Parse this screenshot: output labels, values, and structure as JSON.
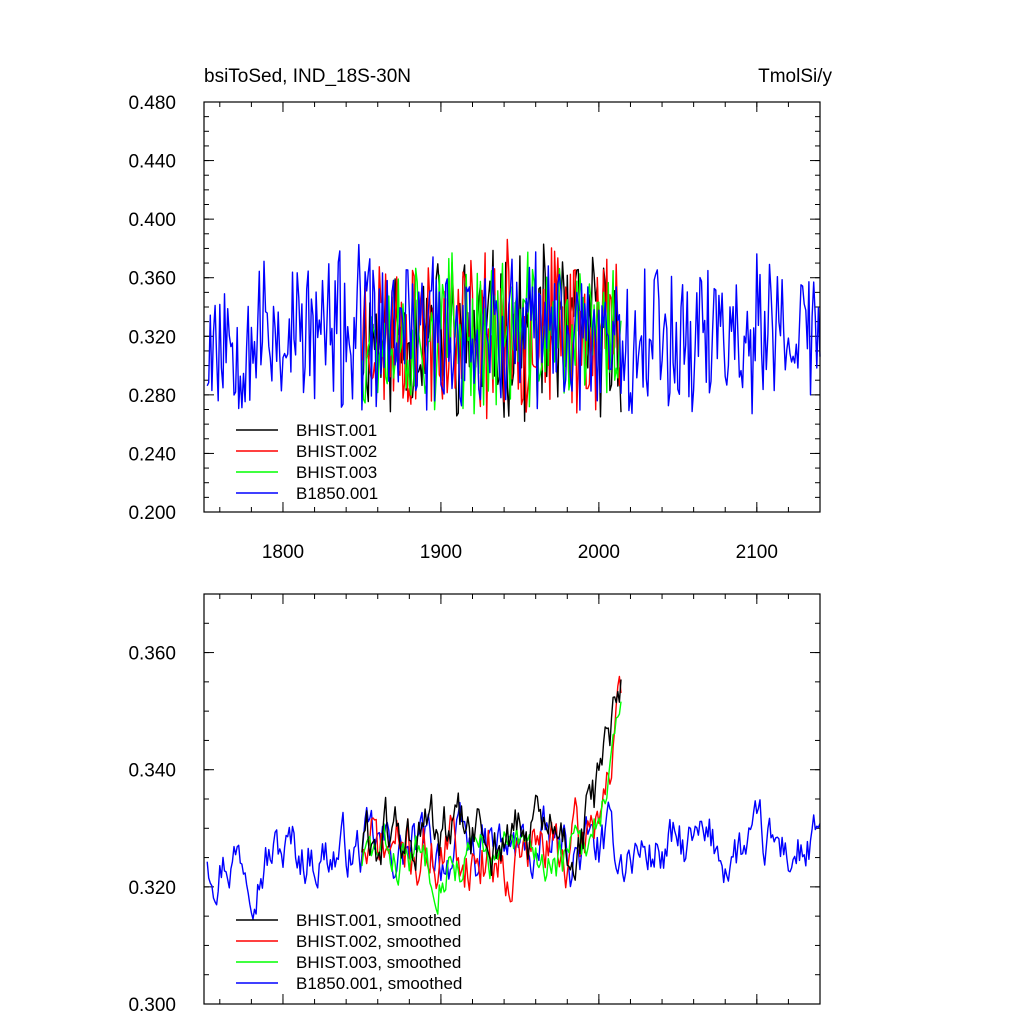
{
  "chart_data": [
    {
      "type": "line",
      "title_left": "bsiToSed, IND_18S-30N",
      "title_right": "TmolSi/y",
      "xlabel": "",
      "ylabel": "",
      "xlim": [
        1750,
        2140
      ],
      "ylim": [
        0.2,
        0.48
      ],
      "yticks": [
        "0.200",
        "0.240",
        "0.280",
        "0.320",
        "0.360",
        "0.400",
        "0.440",
        "0.480"
      ],
      "xticks": [
        "1800",
        "1900",
        "2000",
        "2100"
      ],
      "legend_position": "lower-left",
      "series": [
        {
          "name": "BHIST.001",
          "color": "#000000",
          "x_start": 1850,
          "x_end": 2014,
          "mean": 0.322,
          "amp": 0.048,
          "seed": 11
        },
        {
          "name": "BHIST.002",
          "color": "#ff0000",
          "x_start": 1850,
          "x_end": 2014,
          "mean": 0.324,
          "amp": 0.05,
          "seed": 23
        },
        {
          "name": "BHIST.003",
          "color": "#00ff00",
          "x_start": 1850,
          "x_end": 2014,
          "mean": 0.322,
          "amp": 0.045,
          "seed": 37
        },
        {
          "name": "B1850.001",
          "color": "#0000ff",
          "x_start": 1752,
          "x_end": 2140,
          "mean": 0.322,
          "amp": 0.048,
          "seed": 53
        }
      ]
    },
    {
      "type": "line",
      "title_left": "",
      "title_right": "",
      "xlabel": "",
      "ylabel": "",
      "xlim": [
        1750,
        2140
      ],
      "ylim": [
        0.3,
        0.37
      ],
      "yticks": [
        "0.300",
        "0.320",
        "0.340",
        "0.360"
      ],
      "legend_position": "lower-left",
      "series": [
        {
          "name": "BHIST.001, smoothed",
          "color": "#000000",
          "x_start": 1850,
          "x_end": 2014,
          "mean": 0.328,
          "amp": 0.007,
          "seed": 61
        },
        {
          "name": "BHIST.002, smoothed",
          "color": "#ff0000",
          "x_start": 1850,
          "x_end": 2014,
          "mean": 0.326,
          "amp": 0.007,
          "seed": 71
        },
        {
          "name": "BHIST.003, smoothed",
          "color": "#00ff00",
          "x_start": 1850,
          "x_end": 2014,
          "mean": 0.325,
          "amp": 0.005,
          "seed": 83
        },
        {
          "name": "B1850.001, smoothed",
          "color": "#0000ff",
          "x_start": 1752,
          "x_end": 2140,
          "mean": 0.326,
          "amp": 0.006,
          "seed": 97
        }
      ]
    }
  ]
}
